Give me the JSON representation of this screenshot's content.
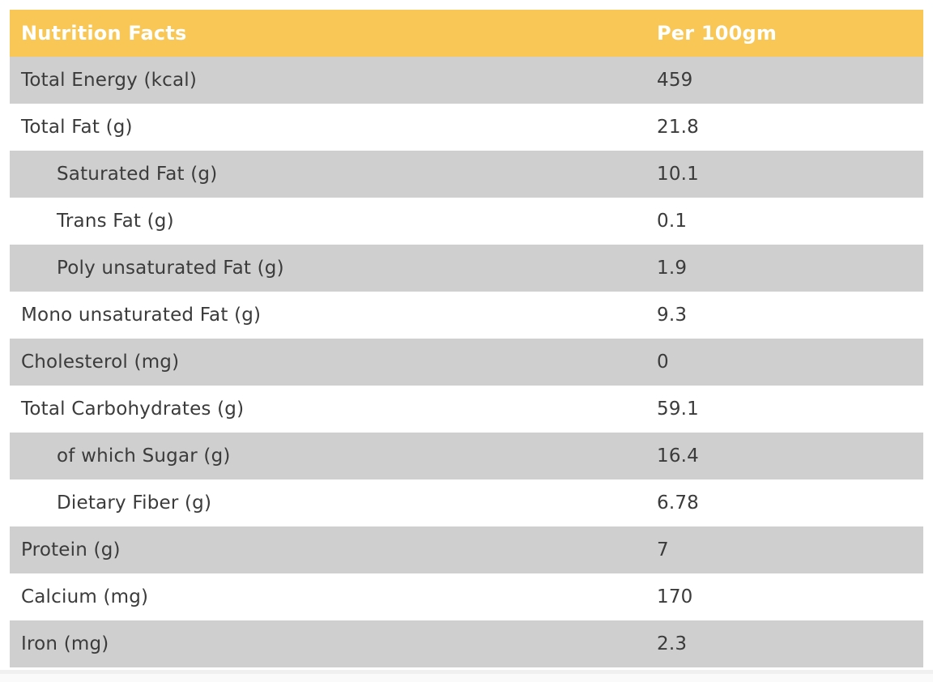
{
  "colors": {
    "header_bg": "#F8C755",
    "header_text": "#FFFFFF",
    "stripe": "#CFCFCF",
    "row_text": "#3B3B3B"
  },
  "table": {
    "header": {
      "label": "Nutrition Facts",
      "value": "Per 100gm"
    },
    "rows": [
      {
        "label": "Total Energy (kcal)",
        "value": "459",
        "indent": false,
        "shaded": true
      },
      {
        "label": "Total Fat (g)",
        "value": "21.8",
        "indent": false,
        "shaded": false
      },
      {
        "label": "Saturated Fat (g)",
        "value": "10.1",
        "indent": true,
        "shaded": true
      },
      {
        "label": "Trans Fat (g)",
        "value": "0.1",
        "indent": true,
        "shaded": false
      },
      {
        "label": "Poly unsaturated Fat (g)",
        "value": "1.9",
        "indent": true,
        "shaded": true
      },
      {
        "label": "Mono unsaturated Fat (g)",
        "value": "9.3",
        "indent": false,
        "shaded": false
      },
      {
        "label": "Cholesterol (mg)",
        "value": "0",
        "indent": false,
        "shaded": true
      },
      {
        "label": "Total Carbohydrates (g)",
        "value": "59.1",
        "indent": false,
        "shaded": false
      },
      {
        "label": "of which Sugar (g)",
        "value": "16.4",
        "indent": true,
        "shaded": true
      },
      {
        "label": "Dietary Fiber (g)",
        "value": "6.78",
        "indent": true,
        "shaded": false
      },
      {
        "label": "Protein (g)",
        "value": "7",
        "indent": false,
        "shaded": true
      },
      {
        "label": "Calcium (mg)",
        "value": "170",
        "indent": false,
        "shaded": false
      },
      {
        "label": "Iron (mg)",
        "value": "2.3",
        "indent": false,
        "shaded": true
      }
    ]
  }
}
